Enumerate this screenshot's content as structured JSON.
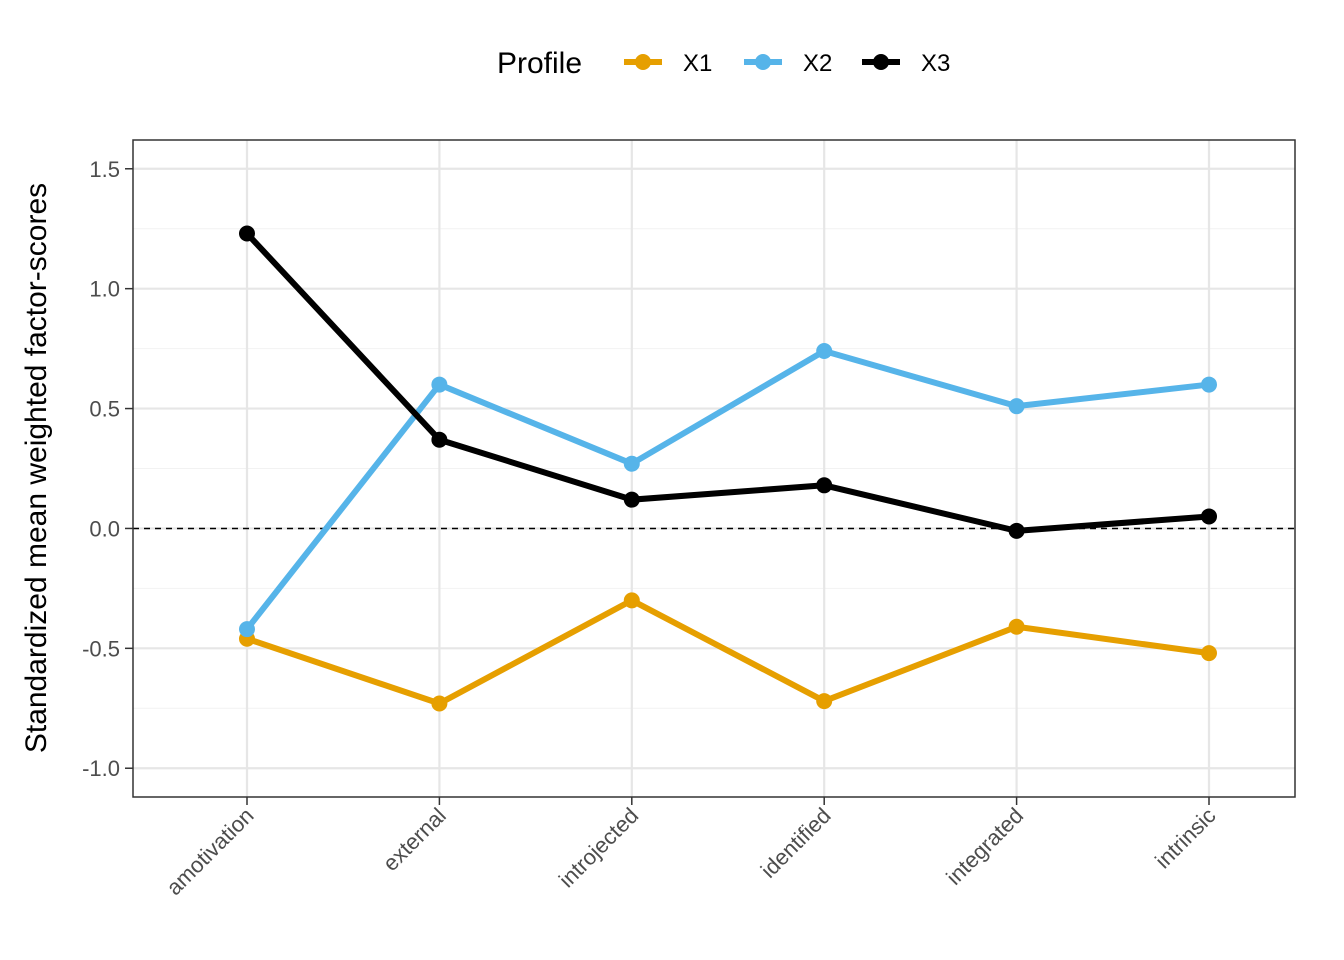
{
  "chart_data": {
    "type": "line",
    "title": "",
    "xlabel": "",
    "ylabel": "Standardized mean weighted factor-scores",
    "categories": [
      "amotivation",
      "external",
      "introjected",
      "identified",
      "integrated",
      "intrinsic"
    ],
    "ylim": [
      -1.12,
      1.62
    ],
    "yticks": [
      -1.0,
      -0.5,
      0.0,
      0.5,
      1.0,
      1.5
    ],
    "ytick_labels": [
      "-1.0",
      "-0.5",
      "0.0",
      "0.5",
      "1.0",
      "1.5"
    ],
    "reference_line": {
      "y": 0,
      "style": "dashed"
    },
    "grid": true,
    "legend": {
      "title": "Profile",
      "position": "top"
    },
    "series": [
      {
        "name": "X1",
        "color": "#E69F00",
        "values": [
          -0.46,
          -0.73,
          -0.3,
          -0.72,
          -0.41,
          -0.52
        ]
      },
      {
        "name": "X2",
        "color": "#56B4E9",
        "values": [
          -0.42,
          0.6,
          0.27,
          0.74,
          0.51,
          0.6
        ]
      },
      {
        "name": "X3",
        "color": "#000000",
        "values": [
          1.23,
          0.37,
          0.12,
          0.18,
          -0.01,
          0.05
        ]
      }
    ]
  }
}
